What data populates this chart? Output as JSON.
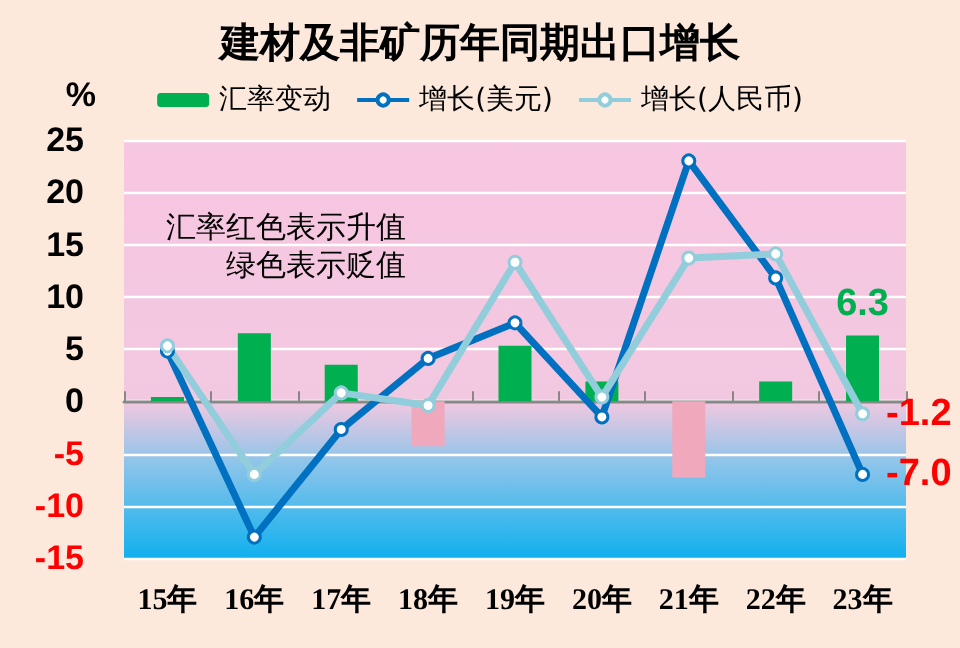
{
  "chart_data": {
    "type": "bar",
    "title": "建材及非矿历年同期出口增长",
    "ylabel": "%",
    "categories": [
      "15年",
      "16年",
      "17年",
      "18年",
      "19年",
      "20年",
      "21年",
      "22年",
      "23年"
    ],
    "series": [
      {
        "name": "汇率变动",
        "color": "#00b050",
        "colors": [
          "#00b050",
          "#00b050",
          "#00b050",
          "#f0a8bc",
          "#00b050",
          "#00b050",
          "#f0a8bc",
          "#00b050",
          "#00b050"
        ],
        "values": [
          0.4,
          6.5,
          3.5,
          -4.3,
          5.3,
          1.9,
          -7.3,
          1.9,
          6.3
        ],
        "value_labels": [
          null,
          null,
          null,
          null,
          null,
          null,
          null,
          null,
          "6.3"
        ]
      },
      {
        "name": "增长(美元)",
        "type": "line",
        "color": "#0070c0",
        "values": [
          4.8,
          -13,
          -2.7,
          4.1,
          7.5,
          -1.5,
          23,
          11.8,
          -7.0
        ],
        "value_labels": [
          null,
          null,
          null,
          null,
          null,
          null,
          null,
          null,
          "-7.0"
        ]
      },
      {
        "name": "增长(人民币)",
        "type": "line",
        "color": "#92cddc",
        "values": [
          5.3,
          -7.0,
          0.8,
          -0.4,
          13.3,
          0.4,
          13.7,
          14.1,
          -1.2
        ],
        "value_labels": [
          null,
          null,
          null,
          null,
          null,
          null,
          null,
          null,
          "-1.2"
        ]
      }
    ],
    "ylim": [
      -15,
      25
    ],
    "yticks": [
      -15,
      -10,
      -5,
      0,
      5,
      10,
      15,
      20,
      25
    ],
    "annotations": [
      "汇率红色表示升值",
      "绿色表示贬值"
    ],
    "grid": "y",
    "legend": "top",
    "marker": "circle"
  }
}
